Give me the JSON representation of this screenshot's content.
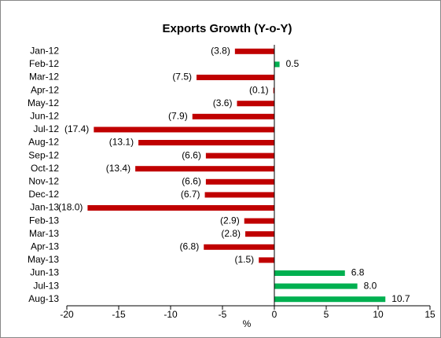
{
  "chart_data": {
    "type": "barh",
    "title": "Exports Growth (Y-o-Y)",
    "categories": [
      "Jan-12",
      "Feb-12",
      "Mar-12",
      "Apr-12",
      "May-12",
      "Jun-12",
      "Jul-12",
      "Aug-12",
      "Sep-12",
      "Oct-12",
      "Nov-12",
      "Dec-12",
      "Jan-13",
      "Feb-13",
      "Mar-13",
      "Apr-13",
      "May-13",
      "Jun-13",
      "Jul-13",
      "Aug-13"
    ],
    "values": [
      -3.8,
      0.5,
      -7.5,
      -0.1,
      -3.6,
      -7.9,
      -17.4,
      -13.1,
      -6.6,
      -13.4,
      -6.6,
      -6.7,
      -18.0,
      -2.9,
      -2.8,
      -6.8,
      -1.5,
      6.8,
      8.0,
      10.7
    ],
    "value_labels": [
      "(3.8)",
      "0.5",
      "(7.5)",
      "(0.1)",
      "(3.6)",
      "(7.9)",
      "(17.4)",
      "(13.1)",
      "(6.6)",
      "(13.4)",
      "(6.6)",
      "(6.7)",
      "(18.0)",
      "(2.9)",
      "(2.8)",
      "(6.8)",
      "(1.5)",
      "6.8",
      "8.0",
      "10.7"
    ],
    "negative_color": "#c00000",
    "positive_color": "#00b050",
    "xlabel": "%",
    "xlim": [
      -20,
      15
    ],
    "xticks": [
      -20,
      -15,
      -10,
      -5,
      0,
      5,
      10,
      15
    ]
  }
}
